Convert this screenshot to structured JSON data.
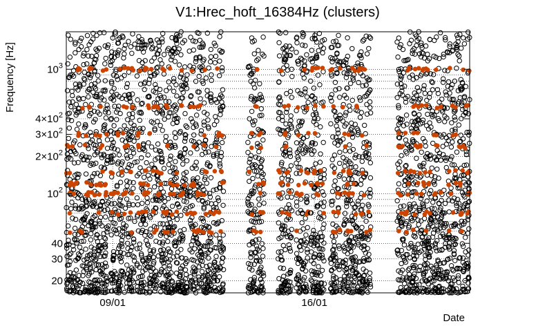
{
  "chart_data": {
    "type": "scatter",
    "title": "V1:Hrec_hoft_16384Hz (clusters)",
    "xlabel": "Date",
    "ylabel": "Frequency [Hz]",
    "yscale": "log",
    "ylim": [
      16,
      2000
    ],
    "xlim": [
      0,
      20
    ],
    "x_ticks": [
      {
        "value": 2.3,
        "label": "09/01"
      },
      {
        "value": 12.3,
        "label": "16/01"
      }
    ],
    "y_ticks": [
      {
        "value": 20,
        "label": "20"
      },
      {
        "value": 30,
        "label": "30"
      },
      {
        "value": 40,
        "label": "40"
      },
      {
        "value": 100,
        "base": "10",
        "exp": "2"
      },
      {
        "value": 200,
        "mant": "2×10",
        "exp": "2"
      },
      {
        "value": 300,
        "mant": "3×10",
        "exp": "2"
      },
      {
        "value": 400,
        "mant": "4×10",
        "exp": "2"
      },
      {
        "value": 1000,
        "base": "10",
        "exp": "3"
      }
    ],
    "observing_segments": [
      [
        0,
        2.1
      ],
      [
        2.2,
        3.4
      ],
      [
        3.5,
        6.0
      ],
      [
        6.1,
        7.2
      ],
      [
        7.3,
        7.8
      ],
      [
        9.0,
        9.8
      ],
      [
        10.5,
        11.2
      ],
      [
        11.4,
        12.0
      ],
      [
        12.1,
        12.8
      ],
      [
        13.1,
        13.6
      ],
      [
        13.7,
        15.1
      ],
      [
        16.4,
        20
      ]
    ],
    "series": [
      {
        "marker": "open-circle",
        "color": "#000000"
      },
      {
        "marker": "filled-circle",
        "color": "#cc4400"
      }
    ],
    "grid": true
  }
}
